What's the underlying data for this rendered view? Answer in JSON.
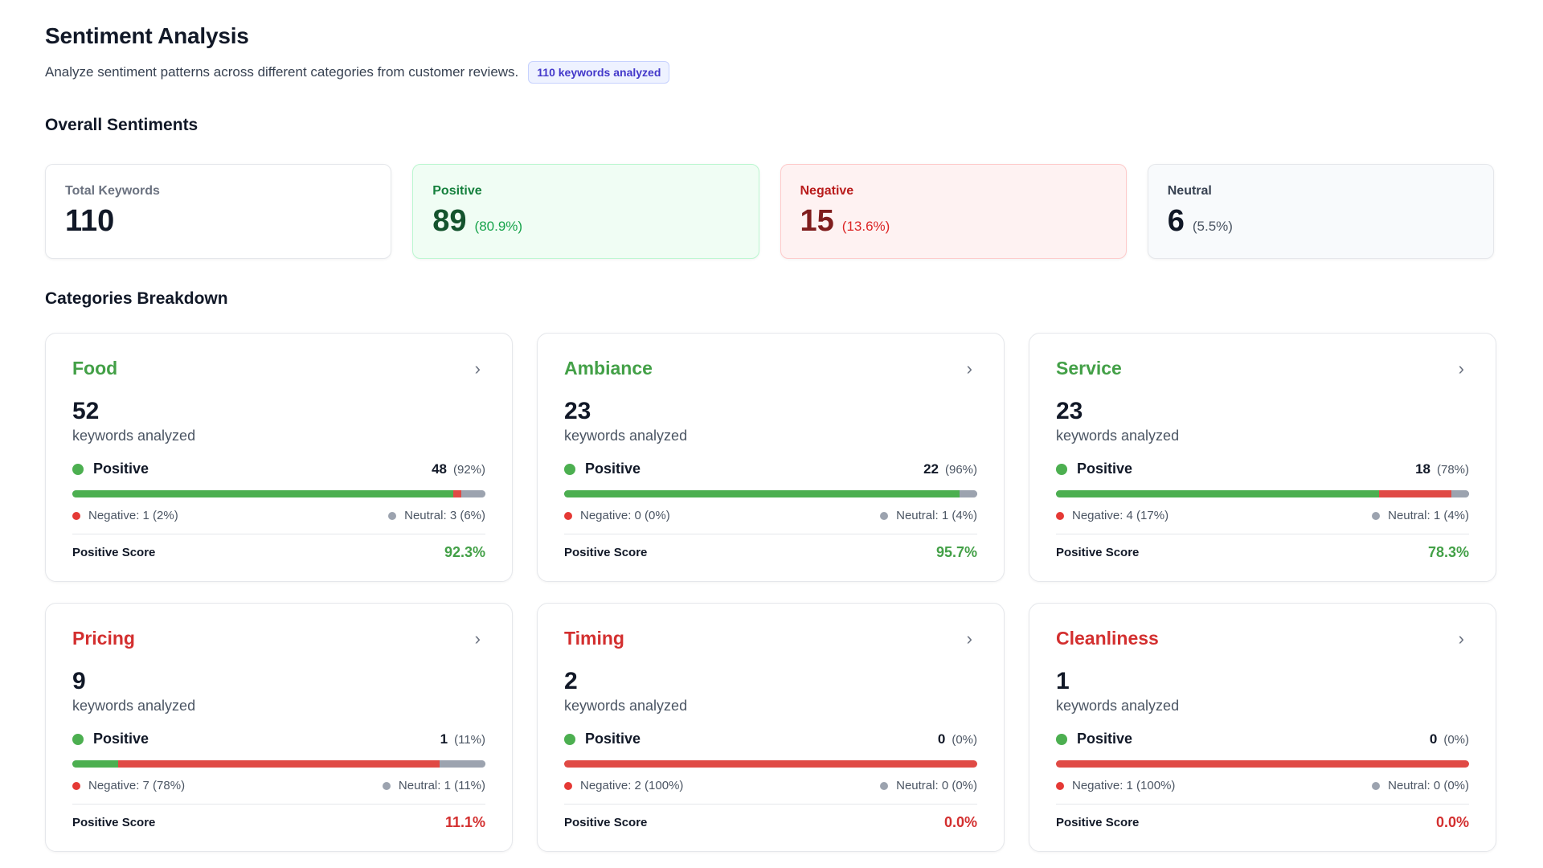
{
  "header": {
    "title": "Sentiment Analysis",
    "subtitle": "Analyze sentiment patterns across different categories from customer reviews.",
    "badge": "110 keywords analyzed"
  },
  "overall": {
    "title": "Overall Sentiments",
    "total": {
      "label": "Total Keywords",
      "value": "110"
    },
    "positive": {
      "label": "Positive",
      "value": "89",
      "pct": "(80.9%)"
    },
    "negative": {
      "label": "Negative",
      "value": "15",
      "pct": "(13.6%)"
    },
    "neutral": {
      "label": "Neutral",
      "value": "6",
      "pct": "(5.5%)"
    }
  },
  "breakdown": {
    "title": "Categories Breakdown",
    "count_label": "keywords analyzed",
    "positive_label": "Positive",
    "score_label": "Positive Score",
    "categories": [
      {
        "name": "Food",
        "tone": "good",
        "count": "52",
        "pos": "48",
        "pos_pct": "(92%)",
        "neg_text": "Negative: 1 (2%)",
        "neu_text": "Neutral: 3 (6%)",
        "score": "92.3%",
        "bar": {
          "pos": 48,
          "neg": 1,
          "neu": 3
        }
      },
      {
        "name": "Ambiance",
        "tone": "good",
        "count": "23",
        "pos": "22",
        "pos_pct": "(96%)",
        "neg_text": "Negative: 0 (0%)",
        "neu_text": "Neutral: 1 (4%)",
        "score": "95.7%",
        "bar": {
          "pos": 22,
          "neg": 0,
          "neu": 1
        }
      },
      {
        "name": "Service",
        "tone": "good",
        "count": "23",
        "pos": "18",
        "pos_pct": "(78%)",
        "neg_text": "Negative: 4 (17%)",
        "neu_text": "Neutral: 1 (4%)",
        "score": "78.3%",
        "bar": {
          "pos": 18,
          "neg": 4,
          "neu": 1
        }
      },
      {
        "name": "Pricing",
        "tone": "bad",
        "count": "9",
        "pos": "1",
        "pos_pct": "(11%)",
        "neg_text": "Negative: 7 (78%)",
        "neu_text": "Neutral: 1 (11%)",
        "score": "11.1%",
        "bar": {
          "pos": 1,
          "neg": 7,
          "neu": 1
        }
      },
      {
        "name": "Timing",
        "tone": "bad",
        "count": "2",
        "pos": "0",
        "pos_pct": "(0%)",
        "neg_text": "Negative: 2 (100%)",
        "neu_text": "Neutral: 0 (0%)",
        "score": "0.0%",
        "bar": {
          "pos": 0,
          "neg": 2,
          "neu": 0
        }
      },
      {
        "name": "Cleanliness",
        "tone": "bad",
        "count": "1",
        "pos": "0",
        "pos_pct": "(0%)",
        "neg_text": "Negative: 1 (100%)",
        "neu_text": "Neutral: 0 (0%)",
        "score": "0.0%",
        "bar": {
          "pos": 0,
          "neg": 1,
          "neu": 0
        }
      }
    ]
  },
  "colors": {
    "positive": "#4caf50",
    "negative": "#e04a45",
    "neutral": "#9ca3af"
  },
  "icons": {
    "chevron": "chevron-right-icon"
  }
}
